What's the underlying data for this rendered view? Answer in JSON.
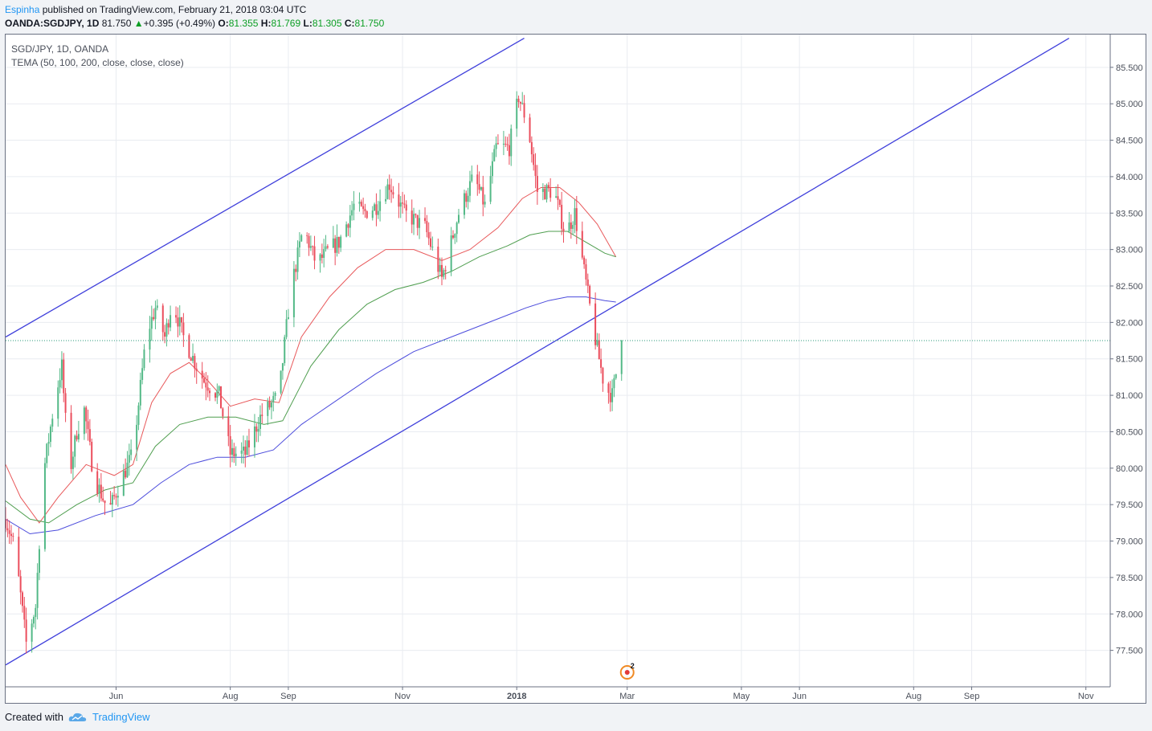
{
  "header": {
    "author": "Espinha",
    "published": " published on TradingView.com, February 21, 2018 03:04 UTC",
    "symbol": "OANDA:SGDJPY, 1D",
    "last": "81.750",
    "change_arrow": "▲",
    "change": "+0.395 (+0.49%)",
    "o_label": "O:",
    "o": "81.355",
    "h_label": "H:",
    "h": "81.769",
    "l_label": "L:",
    "l": "81.305",
    "c_label": "C:",
    "c": "81.750"
  },
  "legend": {
    "title": "SGD/JPY, 1D, OANDA",
    "indicator": "TEMA (50, 100, 200, close, close, close)"
  },
  "footer": {
    "created_with": "Created with",
    "brand": "TradingView"
  },
  "colors": {
    "up": "#53b987",
    "down": "#eb4d5c",
    "channel": "#3f3fdb",
    "tema50": "#e8585a",
    "tema100": "#4f9e4f",
    "tema200": "#4c4cdc",
    "price_line": "#2a9a78"
  },
  "chart_data": {
    "type": "candlestick",
    "y_ticks": [
      "85.500",
      "85.000",
      "84.500",
      "84.000",
      "83.500",
      "83.000",
      "82.500",
      "82.000",
      "81.500",
      "81.000",
      "80.500",
      "80.000",
      "79.500",
      "79.000",
      "78.500",
      "78.000",
      "77.500"
    ],
    "x_ticks": [
      "Jun",
      "Aug",
      "Sep",
      "Nov",
      "2018",
      "Mar",
      "May",
      "Jun",
      "Aug",
      "Sep",
      "Nov"
    ],
    "x_tick_days": [
      31,
      92,
      123,
      184,
      245,
      304,
      365,
      396,
      457,
      488,
      549
    ],
    "ylim": [
      77.0,
      85.95
    ],
    "xlim_days": [
      -28,
      562
    ],
    "day0": "2017-05-01",
    "last_price": 81.75,
    "anchors": [
      {
        "d": -28,
        "p": 79.3
      },
      {
        "d": -23,
        "p": 78.9
      },
      {
        "d": -17,
        "p": 77.6
      },
      {
        "d": -12,
        "p": 78.1
      },
      {
        "d": -8,
        "p": 79.9
      },
      {
        "d": -2,
        "p": 80.9
      },
      {
        "d": 2,
        "p": 81.4
      },
      {
        "d": 6,
        "p": 79.9
      },
      {
        "d": 10,
        "p": 80.5
      },
      {
        "d": 14,
        "p": 80.8
      },
      {
        "d": 19,
        "p": 79.9
      },
      {
        "d": 27,
        "p": 79.4
      },
      {
        "d": 33,
        "p": 79.8
      },
      {
        "d": 40,
        "p": 80.2
      },
      {
        "d": 47,
        "p": 81.8
      },
      {
        "d": 52,
        "p": 82.2
      },
      {
        "d": 57,
        "p": 81.8
      },
      {
        "d": 61,
        "p": 82.3
      },
      {
        "d": 67,
        "p": 81.8
      },
      {
        "d": 74,
        "p": 81.4
      },
      {
        "d": 78,
        "p": 81.2
      },
      {
        "d": 86,
        "p": 81.0
      },
      {
        "d": 92,
        "p": 80.2
      },
      {
        "d": 100,
        "p": 80.2
      },
      {
        "d": 108,
        "p": 80.7
      },
      {
        "d": 118,
        "p": 81.0
      },
      {
        "d": 124,
        "p": 82.4
      },
      {
        "d": 131,
        "p": 83.3
      },
      {
        "d": 138,
        "p": 82.8
      },
      {
        "d": 145,
        "p": 83.0
      },
      {
        "d": 150,
        "p": 83.1
      },
      {
        "d": 158,
        "p": 83.6
      },
      {
        "d": 163,
        "p": 83.5
      },
      {
        "d": 170,
        "p": 83.6
      },
      {
        "d": 177,
        "p": 83.9
      },
      {
        "d": 185,
        "p": 83.5
      },
      {
        "d": 196,
        "p": 83.3
      },
      {
        "d": 205,
        "p": 82.6
      },
      {
        "d": 214,
        "p": 83.5
      },
      {
        "d": 222,
        "p": 84.0
      },
      {
        "d": 228,
        "p": 83.6
      },
      {
        "d": 234,
        "p": 84.4
      },
      {
        "d": 241,
        "p": 84.4
      },
      {
        "d": 246,
        "p": 85.1
      },
      {
        "d": 251,
        "p": 84.7
      },
      {
        "d": 256,
        "p": 83.8
      },
      {
        "d": 265,
        "p": 83.8
      },
      {
        "d": 271,
        "p": 83.2
      },
      {
        "d": 276,
        "p": 83.5
      },
      {
        "d": 281,
        "p": 82.7
      },
      {
        "d": 286,
        "p": 81.9
      },
      {
        "d": 292,
        "p": 81.1
      },
      {
        "d": 296,
        "p": 81.0
      },
      {
        "d": 301,
        "p": 81.75
      }
    ],
    "channel_lines": [
      {
        "d1": -28,
        "p1": 81.8,
        "d2": 249,
        "p2": 85.9
      },
      {
        "d1": -28,
        "p1": 77.3,
        "d2": 540,
        "p2": 85.9
      }
    ],
    "tema": [
      {
        "name": "TEMA 50",
        "color": "#e8585a",
        "pts": [
          [
            -28,
            80.05
          ],
          [
            -20,
            79.6
          ],
          [
            -10,
            79.25
          ],
          [
            0,
            79.6
          ],
          [
            15,
            80.05
          ],
          [
            30,
            79.9
          ],
          [
            40,
            80.05
          ],
          [
            50,
            80.9
          ],
          [
            60,
            81.3
          ],
          [
            70,
            81.45
          ],
          [
            80,
            81.2
          ],
          [
            92,
            80.85
          ],
          [
            105,
            80.95
          ],
          [
            118,
            80.9
          ],
          [
            130,
            81.8
          ],
          [
            145,
            82.35
          ],
          [
            160,
            82.75
          ],
          [
            175,
            83.0
          ],
          [
            190,
            83.0
          ],
          [
            205,
            82.85
          ],
          [
            220,
            83.0
          ],
          [
            235,
            83.3
          ],
          [
            248,
            83.7
          ],
          [
            258,
            83.85
          ],
          [
            268,
            83.85
          ],
          [
            278,
            83.65
          ],
          [
            288,
            83.35
          ],
          [
            298,
            82.9
          ]
        ]
      },
      {
        "name": "TEMA 100",
        "color": "#4f9e4f",
        "pts": [
          [
            -28,
            79.55
          ],
          [
            -15,
            79.3
          ],
          [
            -5,
            79.25
          ],
          [
            10,
            79.5
          ],
          [
            25,
            79.7
          ],
          [
            40,
            79.8
          ],
          [
            52,
            80.3
          ],
          [
            65,
            80.6
          ],
          [
            80,
            80.7
          ],
          [
            95,
            80.7
          ],
          [
            110,
            80.6
          ],
          [
            120,
            80.65
          ],
          [
            135,
            81.4
          ],
          [
            150,
            81.9
          ],
          [
            165,
            82.25
          ],
          [
            180,
            82.45
          ],
          [
            195,
            82.55
          ],
          [
            210,
            82.7
          ],
          [
            225,
            82.9
          ],
          [
            240,
            83.05
          ],
          [
            252,
            83.2
          ],
          [
            262,
            83.25
          ],
          [
            272,
            83.25
          ],
          [
            282,
            83.1
          ],
          [
            292,
            82.95
          ],
          [
            298,
            82.9
          ]
        ]
      },
      {
        "name": "TEMA 200",
        "color": "#4c4cdc",
        "pts": [
          [
            -28,
            79.3
          ],
          [
            -15,
            79.1
          ],
          [
            0,
            79.15
          ],
          [
            20,
            79.35
          ],
          [
            40,
            79.5
          ],
          [
            55,
            79.8
          ],
          [
            70,
            80.05
          ],
          [
            85,
            80.15
          ],
          [
            100,
            80.15
          ],
          [
            115,
            80.25
          ],
          [
            130,
            80.6
          ],
          [
            150,
            80.95
          ],
          [
            170,
            81.3
          ],
          [
            190,
            81.6
          ],
          [
            210,
            81.8
          ],
          [
            230,
            82.0
          ],
          [
            250,
            82.2
          ],
          [
            262,
            82.3
          ],
          [
            272,
            82.35
          ],
          [
            282,
            82.35
          ],
          [
            292,
            82.3
          ],
          [
            298,
            82.28
          ]
        ]
      }
    ]
  }
}
